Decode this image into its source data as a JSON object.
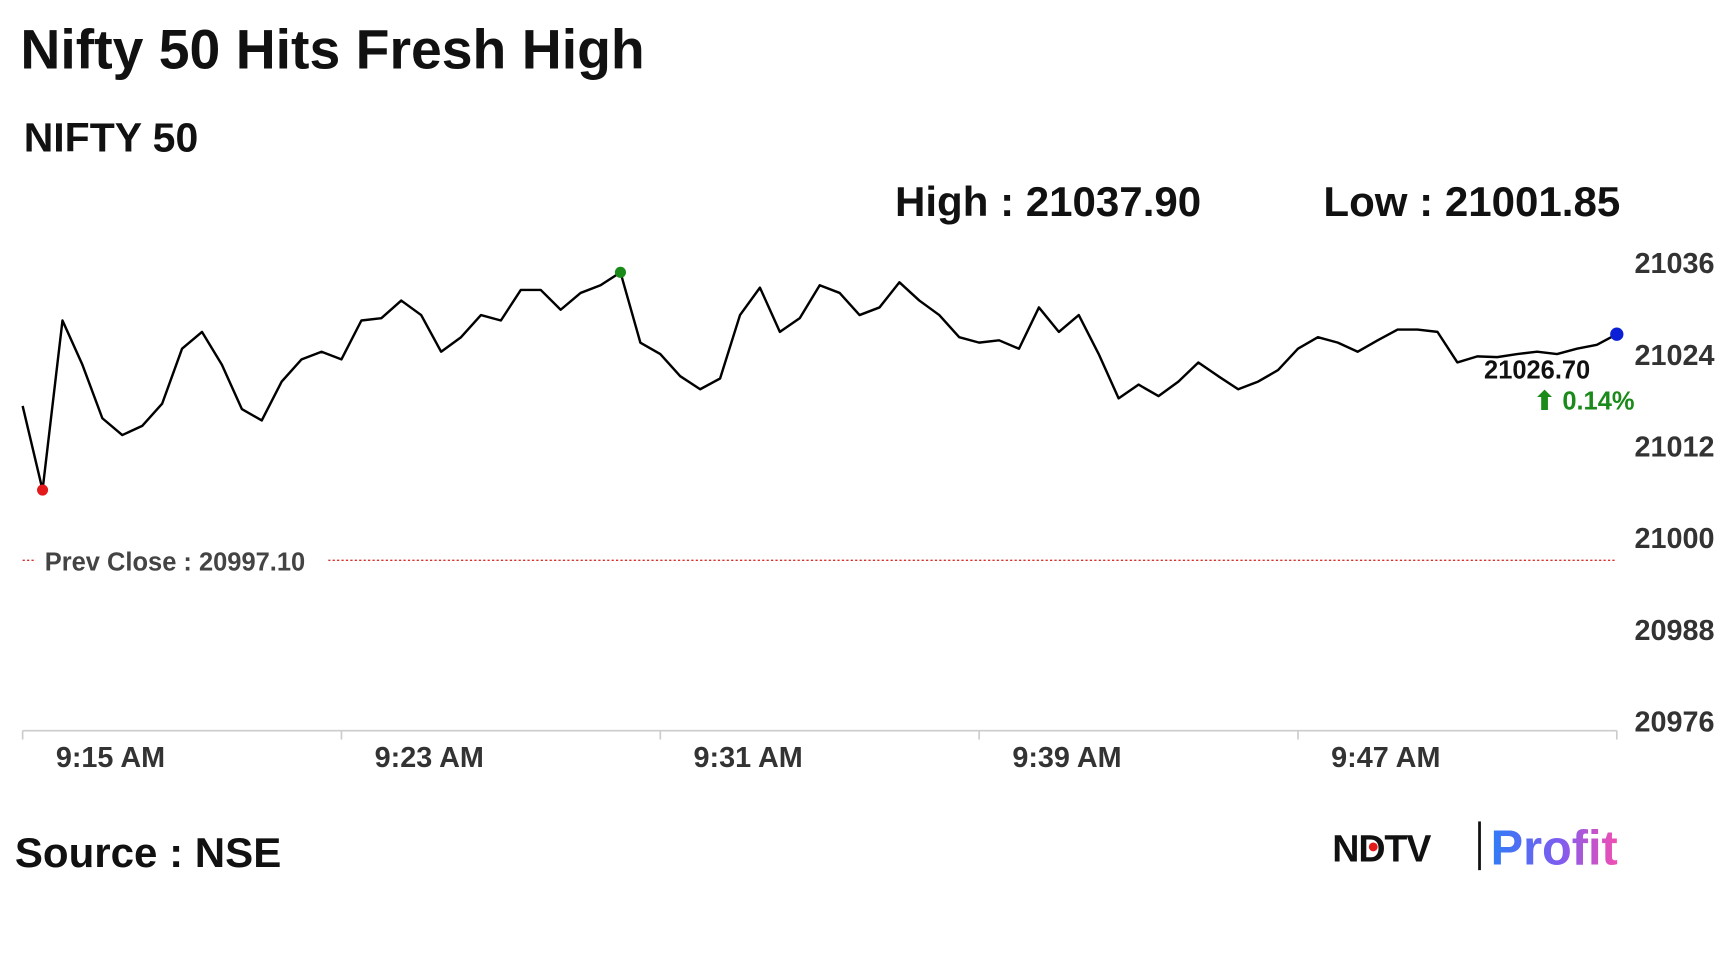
{
  "title": "Nifty 50 Hits Fresh High",
  "chart_data": {
    "type": "line",
    "subtitle": "NIFTY 50",
    "high_label": "High : 21037.90",
    "low_label": "Low : 21001.85",
    "categories": [
      "9:15 AM",
      null,
      null,
      null,
      null,
      null,
      null,
      null,
      null,
      null,
      null,
      null,
      null,
      null,
      null,
      null,
      "9:23 AM",
      null,
      null,
      null,
      null,
      null,
      null,
      null,
      null,
      null,
      null,
      null,
      null,
      null,
      null,
      null,
      "9:31 AM",
      null,
      null,
      null,
      null,
      null,
      null,
      null,
      null,
      null,
      null,
      null,
      null,
      null,
      null,
      null,
      "9:39 AM",
      null,
      null,
      null,
      null,
      null,
      null,
      null,
      null,
      null,
      null,
      null,
      null,
      null,
      null,
      null,
      "9:47 AM",
      null,
      null,
      null,
      null,
      null,
      null,
      null,
      null,
      null,
      null,
      null,
      null,
      null,
      null,
      null,
      null
    ],
    "values": [
      21017.3,
      21006.3,
      21028.5,
      21022.7,
      21015.7,
      21013.5,
      21014.7,
      21017.6,
      21024.8,
      21027.0,
      21022.7,
      21016.9,
      21015.4,
      21020.5,
      21023.4,
      21024.4,
      21023.4,
      21028.5,
      21028.8,
      21031.1,
      21029.2,
      21024.4,
      21026.3,
      21029.2,
      21028.5,
      21032.5,
      21032.5,
      21029.9,
      21032.1,
      21033.1,
      21034.8,
      21025.6,
      21024.1,
      21021.2,
      21019.5,
      21020.9,
      21029.2,
      21032.8,
      21027.0,
      21028.8,
      21033.1,
      21032.1,
      21029.2,
      21030.2,
      21033.5,
      21031.1,
      21029.2,
      21026.3,
      21025.6,
      21025.9,
      21024.8,
      21030.2,
      21027.0,
      21029.2,
      21024.1,
      21018.3,
      21020.1,
      21018.6,
      21020.5,
      21023.0,
      21021.2,
      21019.5,
      21020.5,
      21022.0,
      21024.8,
      21026.3,
      21025.6,
      21024.4,
      21025.9,
      21027.3,
      21027.3,
      21027.0,
      21023.0,
      21023.8,
      21023.7,
      21024.1,
      21024.4,
      21024.1,
      21024.8,
      21025.3,
      21026.7
    ],
    "color": "#000000",
    "low_marker_color": "#e31a1c",
    "high_marker_color": "#1a8a1a",
    "last_marker_color": "#0b1fd6",
    "last_value_label": "21026.70",
    "change_label": "⬆ 0.14%",
    "change_color": "#1a8a1a",
    "reference_line": {
      "value": 20997.1,
      "label": "Prev Close : 20997.10",
      "color": "#d9302c"
    },
    "ylim": [
      20974.8,
      21039
    ],
    "yticks": [
      20976,
      20988,
      21000,
      21012,
      21024,
      21036
    ]
  },
  "footer": {
    "source": "Source : NSE",
    "logo_left": "NDTV",
    "logo_right": "Profit"
  }
}
